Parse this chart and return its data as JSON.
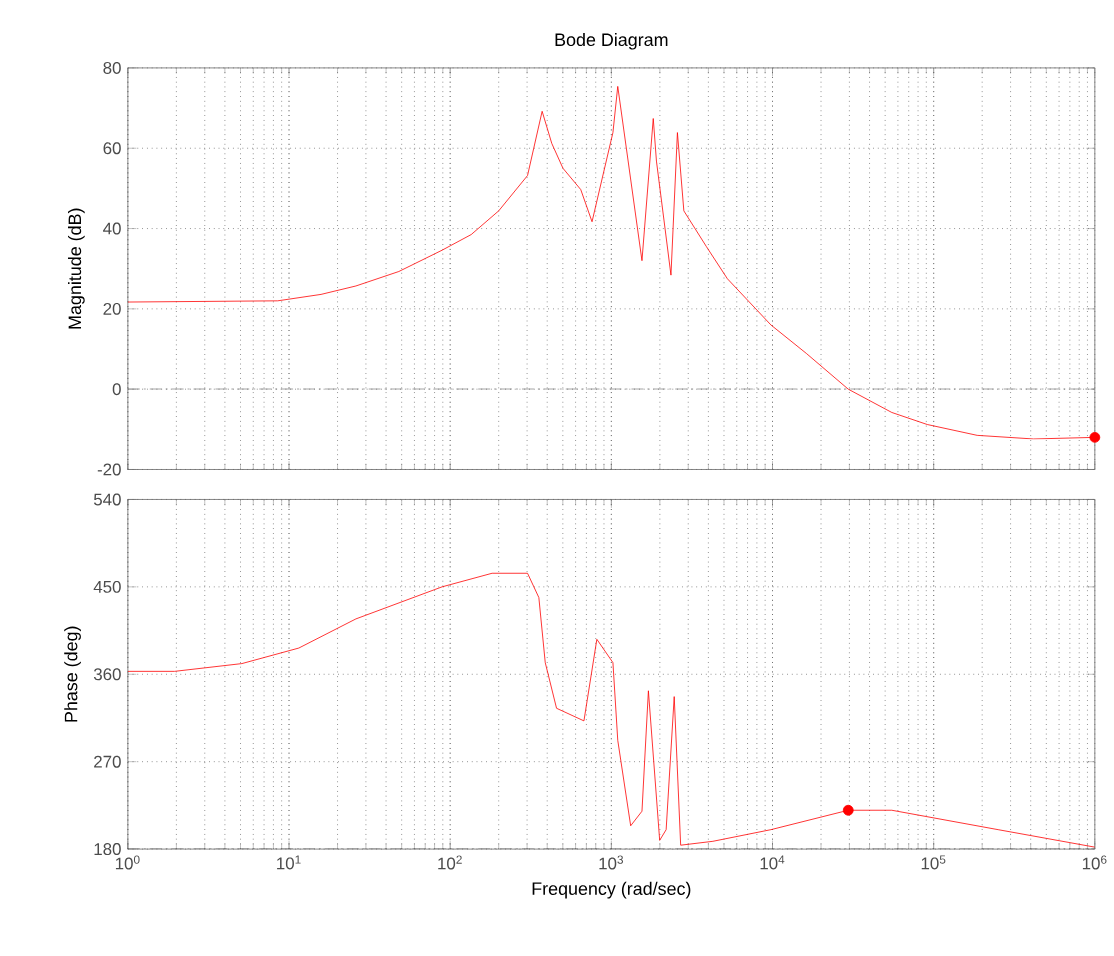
{
  "chart_data": [
    {
      "type": "line",
      "title": "Bode Diagram",
      "ylabel": "Magnitude (dB)",
      "log": "x",
      "grid": true,
      "tick_labels": "y",
      "xlim": [
        1,
        1000000
      ],
      "ylim": [
        -20,
        80
      ],
      "xticks": [
        {
          "value": 1,
          "label": null
        },
        {
          "value": 10,
          "label": null
        },
        {
          "value": 100,
          "label": null
        },
        {
          "value": 1000,
          "label": null
        },
        {
          "value": 10000,
          "label": null
        },
        {
          "value": 100000,
          "label": null
        },
        {
          "value": 1000000,
          "label": null
        }
      ],
      "yticks": [
        -20,
        0,
        20,
        40,
        60,
        80
      ],
      "ref_lines": [
        {
          "axis": "y",
          "value": 0,
          "line_style": "dashed",
          "color": "#555555"
        }
      ],
      "series": [
        {
          "color": "#ff0000",
          "x": [
            1,
            8.5,
            15.8,
            26,
            48,
            89,
            135,
            200,
            302,
            372,
            427,
            501,
            646,
            759,
            1023,
            1096,
            1549,
            1820,
            1905,
            2344,
            2570,
            2818,
            3890,
            5248,
            9772,
            16218,
            29512,
            54954,
            91201,
            186209,
            416869,
            1000000
          ],
          "values": [
            21.7,
            22,
            23.6,
            25.7,
            29.3,
            34.6,
            38.5,
            44.4,
            53.2,
            69.2,
            61.2,
            55,
            49.7,
            41.7,
            63.9,
            75.4,
            32,
            67.4,
            56.8,
            28.4,
            63.9,
            44.4,
            35.5,
            27.5,
            16,
            8.9,
            0,
            -5.8,
            -8.8,
            -11.5,
            -12.4,
            -12
          ]
        },
        {
          "type": "scatter",
          "marker": "circle",
          "color": "#ff0000",
          "x": [
            1000000
          ],
          "values": [
            -12
          ]
        }
      ]
    },
    {
      "type": "line",
      "xlabel": "Frequency  (rad/sec)",
      "ylabel": "Phase (deg)",
      "log": "x",
      "grid": true,
      "xlim": [
        1,
        1000000
      ],
      "ylim": [
        180,
        540
      ],
      "xticks": [
        {
          "value": 1,
          "label": "10$^{0}$"
        },
        {
          "value": 10,
          "label": "10$^{1}$"
        },
        {
          "value": 100,
          "label": "10$^{2}$"
        },
        {
          "value": 1000,
          "label": "10$^{3}$"
        },
        {
          "value": 10000,
          "label": "10$^{4}$"
        },
        {
          "value": 100000,
          "label": "10$^{5}$"
        },
        {
          "value": 1000000,
          "label": "10$^{6}$"
        }
      ],
      "yticks": [
        180,
        270,
        360,
        450,
        540
      ],
      "ref_lines": [
        {
          "axis": "y",
          "value": 180,
          "line_style": "dashed",
          "color": "#555555"
        }
      ],
      "series": [
        {
          "color": "#ff0000",
          "x": [
            1,
            1.95,
            5.1,
            11.5,
            26,
            89,
            182,
            302,
            355,
            389,
            457,
            676,
            813,
            1023,
            1096,
            1318,
            1549,
            1698,
            1995,
            2188,
            2455,
            2692,
            4266,
            9772,
            29512,
            54954,
            251189,
            1000000
          ],
          "values": [
            363,
            363,
            371,
            387,
            417,
            450,
            464,
            464,
            439,
            372,
            325,
            312,
            396,
            372,
            292,
            204,
            219,
            343,
            189,
            200,
            337,
            184,
            188,
            200,
            220,
            220,
            200,
            182
          ]
        },
        {
          "type": "scatter",
          "marker": "circle",
          "color": "#ff0000",
          "x": [
            29512
          ],
          "values": [
            220
          ]
        }
      ]
    }
  ]
}
